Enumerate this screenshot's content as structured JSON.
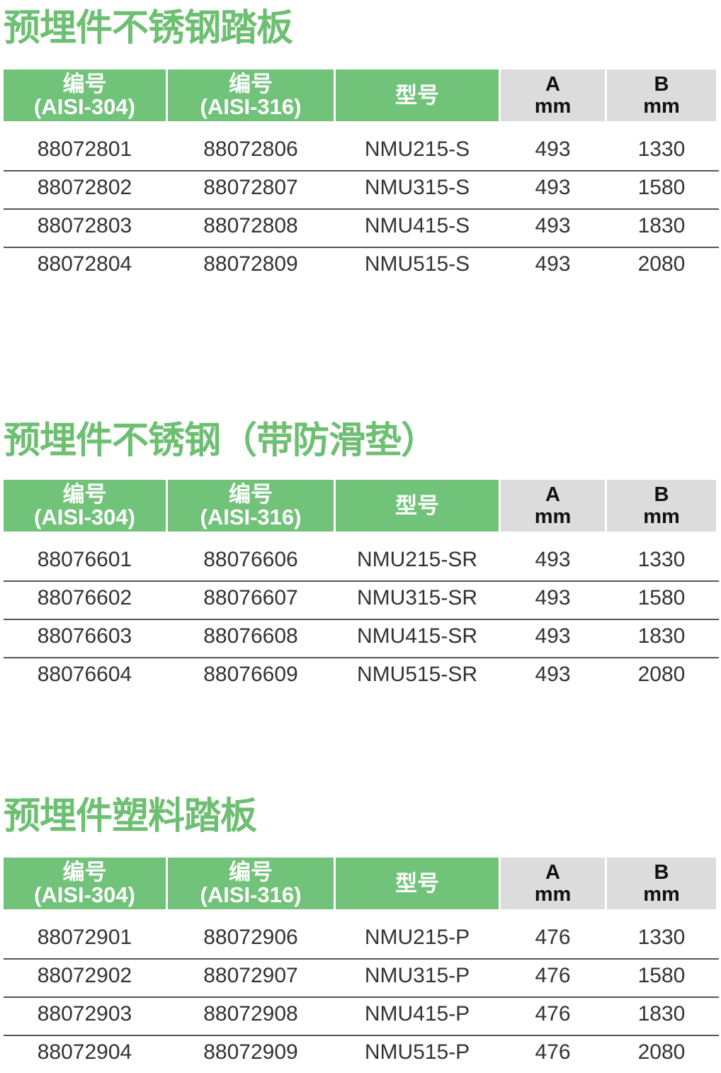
{
  "headers": {
    "col1_line1": "编号",
    "col1_line2": "(AISI-304)",
    "col2_line1": "编号",
    "col2_line2": "(AISI-316)",
    "col3": "型号",
    "col4_line1": "A",
    "col4_line2": "mm",
    "col5_line1": "B",
    "col5_line2": "mm"
  },
  "colors": {
    "title": "#6dbf71",
    "header_green": "#72c37a",
    "header_grey": "#dcdcdc"
  },
  "sections": [
    {
      "title": "预埋件不锈钢踏板",
      "rows": [
        [
          "88072801",
          "88072806",
          "NMU215-S",
          "493",
          "1330"
        ],
        [
          "88072802",
          "88072807",
          "NMU315-S",
          "493",
          "1580"
        ],
        [
          "88072803",
          "88072808",
          "NMU415-S",
          "493",
          "1830"
        ],
        [
          "88072804",
          "88072809",
          "NMU515-S",
          "493",
          "2080"
        ]
      ]
    },
    {
      "title": "预埋件不锈钢（带防滑垫）",
      "rows": [
        [
          "88076601",
          "88076606",
          "NMU215-SR",
          "493",
          "1330"
        ],
        [
          "88076602",
          "88076607",
          "NMU315-SR",
          "493",
          "1580"
        ],
        [
          "88076603",
          "88076608",
          "NMU415-SR",
          "493",
          "1830"
        ],
        [
          "88076604",
          "88076609",
          "NMU515-SR",
          "493",
          "2080"
        ]
      ]
    },
    {
      "title": "预埋件塑料踏板",
      "rows": [
        [
          "88072901",
          "88072906",
          "NMU215-P",
          "476",
          "1330"
        ],
        [
          "88072902",
          "88072907",
          "NMU315-P",
          "476",
          "1580"
        ],
        [
          "88072903",
          "88072908",
          "NMU415-P",
          "476",
          "1830"
        ],
        [
          "88072904",
          "88072909",
          "NMU515-P",
          "476",
          "2080"
        ]
      ]
    }
  ]
}
